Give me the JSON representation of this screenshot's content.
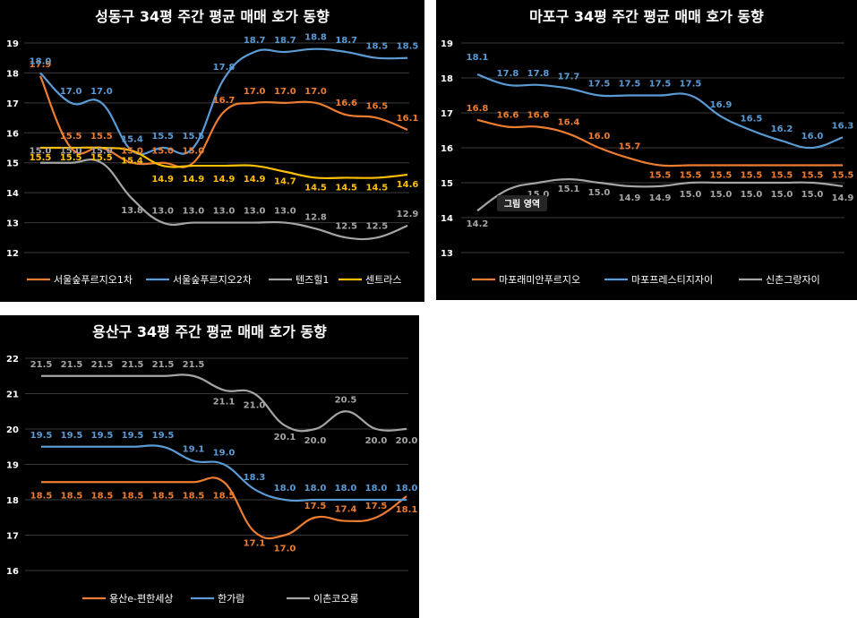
{
  "colors": {
    "orange": "#ED7D31",
    "blue": "#5B9BD5",
    "gray": "#A5A5A5",
    "yellow": "#FFC000",
    "gridline": "#3A3A3A"
  },
  "chart_data": [
    {
      "type": "line",
      "title": "성동구 34평 주간 평균 매매 호가 동향",
      "ylim": [
        12,
        19
      ],
      "yticks": [
        "12",
        "13",
        "14",
        "15",
        "16",
        "17",
        "18",
        "19"
      ],
      "legend_position": "bottom",
      "grid": true,
      "series": [
        {
          "name": "서울숲푸르지오1차",
          "color": "#ED7D31",
          "values": [
            17.9,
            15.5,
            15.5,
            15.0,
            15.0,
            15.0,
            16.7,
            17.0,
            17.0,
            17.0,
            16.6,
            16.5,
            16.1
          ],
          "labels": [
            "17.9",
            "15.5",
            "15.5",
            "15.0",
            "15.0",
            "15.0",
            "16.7",
            "17.0",
            "17.0",
            "17.0",
            "16.6",
            "16.5",
            "16.1"
          ]
        },
        {
          "name": "서울숲푸르지오2차",
          "color": "#5B9BD5",
          "values": [
            18.0,
            17.0,
            17.0,
            15.4,
            15.5,
            15.5,
            17.8,
            18.7,
            18.7,
            18.8,
            18.7,
            18.5,
            18.5
          ],
          "labels": [
            "18.0",
            "17.0",
            "17.0",
            "15.4",
            "15.5",
            "15.5",
            "17.8",
            "18.7",
            "18.7",
            "18.8",
            "18.7",
            "18.5",
            "18.5"
          ]
        },
        {
          "name": "텐즈힐1",
          "color": "#A5A5A5",
          "values": [
            15.0,
            15.0,
            15.0,
            13.8,
            13.0,
            13.0,
            13.0,
            13.0,
            13.0,
            12.8,
            12.5,
            12.5,
            12.9
          ],
          "labels": [
            "15.0",
            "15.0",
            "15.0",
            "13.8",
            "13.0",
            "13.0",
            "13.0",
            "13.0",
            "13.0",
            "12.8",
            "12.5",
            "12.5",
            "12.9"
          ]
        },
        {
          "name": "센트라스",
          "color": "#FFC000",
          "values": [
            15.5,
            15.5,
            15.5,
            15.4,
            14.9,
            14.9,
            14.9,
            14.9,
            14.7,
            14.5,
            14.5,
            14.5,
            14.6
          ],
          "labels": [
            "15.5",
            "15.5",
            "15.5",
            "15.4",
            "14.9",
            "14.9",
            "14.9",
            "14.9",
            "14.7",
            "14.5",
            "14.5",
            "14.5",
            "14.6"
          ]
        }
      ]
    },
    {
      "type": "line",
      "title": "마포구 34평 주간 평균 매매 호가 동향",
      "ylim": [
        13,
        19
      ],
      "yticks": [
        "13",
        "14",
        "15",
        "16",
        "17",
        "18",
        "19"
      ],
      "legend_position": "bottom",
      "grid": true,
      "tooltip": "그림 영역",
      "series": [
        {
          "name": "마포래미안푸르지오",
          "color": "#ED7D31",
          "values": [
            16.8,
            16.6,
            16.6,
            16.4,
            16.0,
            15.7,
            15.5,
            15.5,
            15.5,
            15.5,
            15.5,
            15.5,
            15.5
          ],
          "labels": [
            "16.8",
            "16.6",
            "16.6",
            "16.4",
            "16.0",
            "15.7",
            "15.5",
            "15.5",
            "15.5",
            "15.5",
            "15.5",
            "15.5",
            "15.5"
          ]
        },
        {
          "name": "마포프레스티지자이",
          "color": "#5B9BD5",
          "values": [
            18.1,
            17.8,
            17.8,
            17.7,
            17.5,
            17.5,
            17.5,
            17.5,
            16.9,
            16.5,
            16.2,
            16.0,
            16.3
          ],
          "labels": [
            "18.1",
            "17.8",
            "17.8",
            "17.7",
            "17.5",
            "17.5",
            "17.5",
            "17.5",
            "16.9",
            "16.5",
            "16.2",
            "16.0",
            "16.3"
          ]
        },
        {
          "name": "신촌그랑자이",
          "color": "#A5A5A5",
          "values": [
            14.2,
            14.8,
            15.0,
            15.1,
            15.0,
            14.9,
            14.9,
            15.0,
            15.0,
            15.0,
            15.0,
            15.0,
            14.9
          ],
          "labels": [
            "14.2",
            "",
            "15.0",
            "15.1",
            "15.0",
            "14.9",
            "14.9",
            "15.0",
            "15.0",
            "15.0",
            "15.0",
            "15.0",
            "14.9"
          ]
        }
      ]
    },
    {
      "type": "line",
      "title": "용산구 34평 주간 평균 매매 호가 동향",
      "ylim": [
        16,
        22
      ],
      "yticks": [
        "16",
        "17",
        "18",
        "19",
        "20",
        "21",
        "22"
      ],
      "legend_position": "bottom",
      "grid": true,
      "series": [
        {
          "name": "용산e-편한세상",
          "color": "#ED7D31",
          "values": [
            18.5,
            18.5,
            18.5,
            18.5,
            18.5,
            18.5,
            18.5,
            17.1,
            17.0,
            17.5,
            17.4,
            17.5,
            18.1
          ],
          "labels": [
            "18.5",
            "18.5",
            "18.5",
            "18.5",
            "18.5",
            "18.5",
            "18.5",
            "17.1",
            "17.0",
            "17.5",
            "17.4",
            "17.5",
            "18.1"
          ]
        },
        {
          "name": "한가람",
          "color": "#5B9BD5",
          "values": [
            19.5,
            19.5,
            19.5,
            19.5,
            19.5,
            19.1,
            19.0,
            18.3,
            18.0,
            18.0,
            18.0,
            18.0,
            18.0
          ],
          "labels": [
            "19.5",
            "19.5",
            "19.5",
            "19.5",
            "19.5",
            "19.1",
            "19.0",
            "18.3",
            "18.0",
            "18.0",
            "18.0",
            "18.0",
            "18.0"
          ]
        },
        {
          "name": "이촌코오롱",
          "color": "#A5A5A5",
          "values": [
            21.5,
            21.5,
            21.5,
            21.5,
            21.5,
            21.5,
            21.1,
            21.0,
            20.1,
            20.0,
            20.5,
            20.0,
            20.0
          ],
          "labels": [
            "21.5",
            "21.5",
            "21.5",
            "21.5",
            "21.5",
            "21.5",
            "21.1",
            "21.0",
            "20.1",
            "20.0",
            "20.5",
            "20.0",
            "20.0"
          ]
        }
      ]
    }
  ]
}
